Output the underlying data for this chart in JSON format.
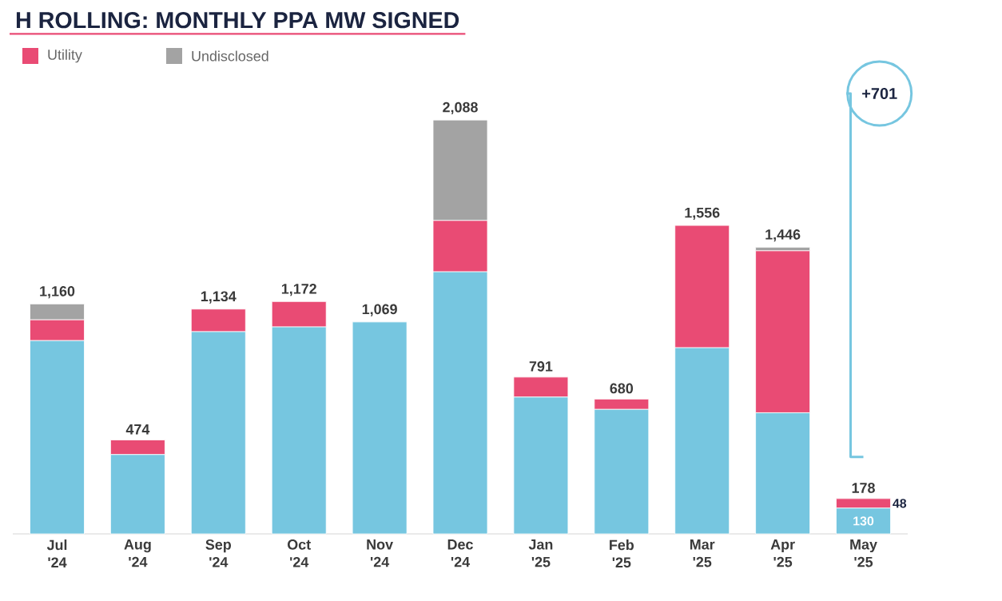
{
  "chart_data": {
    "type": "bar",
    "title": "H ROLLING: MONTHLY PPA MW SIGNED",
    "stacked": true,
    "categories": [
      "Jul '24",
      "Aug '24",
      "Sep '24",
      "Oct '24",
      "Nov '24",
      "Dec '24",
      "Jan '25",
      "Feb '25",
      "Mar '25",
      "Apr '25",
      "May '25"
    ],
    "series": [
      {
        "color": "#76c6e0",
        "values": [
          975,
          400,
          1020,
          1044,
          1069,
          1322,
          690,
          628,
          939,
          611,
          130
        ],
        "value_labels": [
          null,
          null,
          null,
          null,
          null,
          null,
          null,
          null,
          null,
          null,
          "130"
        ]
      },
      {
        "name": "Utility",
        "color": "#e94b74",
        "values": [
          105,
          74,
          114,
          128,
          0,
          259,
          101,
          52,
          617,
          817,
          48
        ],
        "value_labels": [
          null,
          null,
          null,
          null,
          null,
          null,
          null,
          null,
          null,
          null,
          "48"
        ]
      },
      {
        "name": "Undisclosed",
        "color": "#a3a3a3",
        "values": [
          80,
          0,
          0,
          0,
          0,
          507,
          0,
          0,
          0,
          18,
          0
        ]
      }
    ],
    "totals": [
      "1,160",
      "474",
      "1,134",
      "1,172",
      "1,069",
      "2,088",
      "791",
      "680",
      "1,556",
      "1,446",
      "178"
    ],
    "legend": "top left",
    "annotations": [
      "+701"
    ]
  }
}
